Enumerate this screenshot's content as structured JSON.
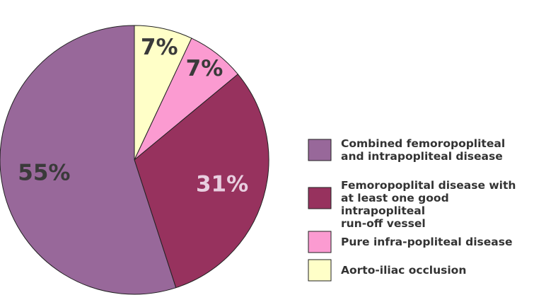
{
  "chart_data": {
    "type": "pie",
    "categories": [
      "Combined femoropopliteal\nand intrapopliteal disease",
      "Femoropoplital disease with\nat least one good intrapopliteal\nrun-off vessel",
      "Pure infra-popliteal disease",
      "Aorto-iliac occlusion"
    ],
    "values": [
      55,
      31,
      7,
      7
    ],
    "value_labels": [
      "55%",
      "31%",
      "7%",
      "7%"
    ],
    "colors": [
      "#98689a",
      "#97325e",
      "#fb9bd1",
      "#ffffc8"
    ]
  }
}
